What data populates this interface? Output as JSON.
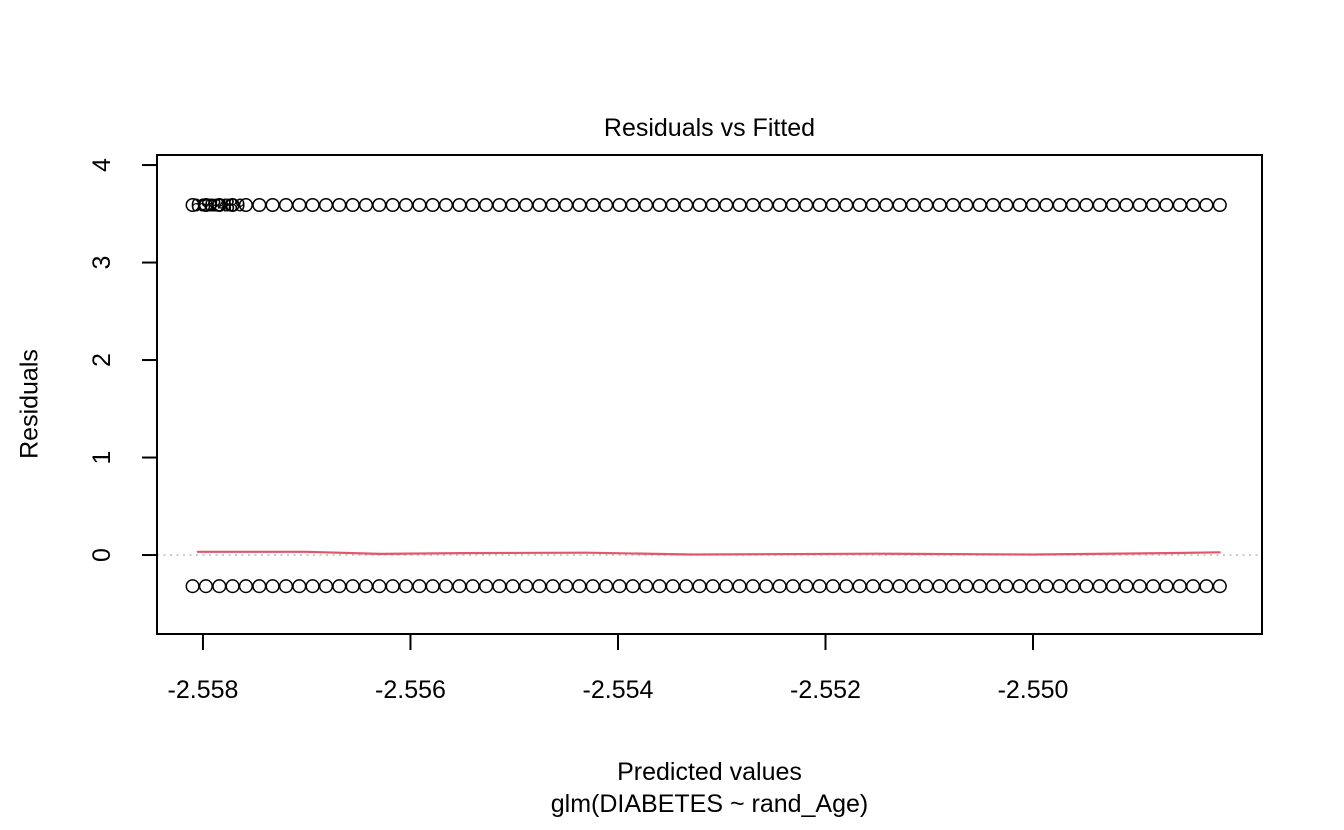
{
  "title": "Residuals vs Fitted",
  "colors": {
    "background": "#ffffff",
    "foreground": "#000000",
    "smoother_red": "#e2566a",
    "zero_line_gray": "#c4c4c4"
  },
  "chart_data": {
    "type": "scatter",
    "title": "Residuals vs Fitted",
    "xlabel": "Predicted values",
    "sublabel": "glm(DIABETES ~ rand_Age)",
    "ylabel": "Residuals",
    "grid": false,
    "legend": false,
    "xlim": [
      -2.558443,
      -2.547793
    ],
    "ylim": [
      -0.81,
      4.103
    ],
    "x_ticks": [
      -2.558,
      -2.556,
      -2.554,
      -2.552,
      -2.55
    ],
    "x_tick_labels": [
      "-2.558",
      "-2.556",
      "-2.554",
      "-2.552",
      "-2.550"
    ],
    "y_ticks": [
      0,
      1,
      2,
      3,
      4
    ],
    "y_tick_labels": [
      "0",
      "1",
      "2",
      "3",
      "4"
    ],
    "series": [
      {
        "name": "positive-residual-band",
        "description": "open circles, evenly spaced fitted values, residual ~ 3.59",
        "y": 3.59,
        "x_start": -2.5581,
        "x_end": -2.5482,
        "n": 78
      },
      {
        "name": "negative-residual-band",
        "description": "open circles, evenly spaced fitted values, residual ~ -0.32",
        "y": -0.32,
        "x_start": -2.5581,
        "x_end": -2.5482,
        "n": 78
      }
    ],
    "zero_line": {
      "y": 0,
      "style": "dotted",
      "color": "#c4c4c4"
    },
    "smoother": {
      "name": "lowess",
      "color": "#e2566a",
      "points": [
        [
          -2.55805,
          0.033
        ],
        [
          -2.557,
          0.033
        ],
        [
          -2.5563,
          0.012
        ],
        [
          -2.5555,
          0.02
        ],
        [
          -2.5543,
          0.024
        ],
        [
          -2.5533,
          0.005
        ],
        [
          -2.5515,
          0.014
        ],
        [
          -2.55,
          0.005
        ],
        [
          -2.5487,
          0.02
        ],
        [
          -2.5482,
          0.028
        ]
      ]
    },
    "point_labels": [
      {
        "text": "6928",
        "x": -2.55792,
        "y": 3.59
      },
      {
        "text": "6948",
        "x": -2.55786,
        "y": 3.59
      },
      {
        "text": "6989",
        "x": -2.55779,
        "y": 3.59
      }
    ]
  }
}
